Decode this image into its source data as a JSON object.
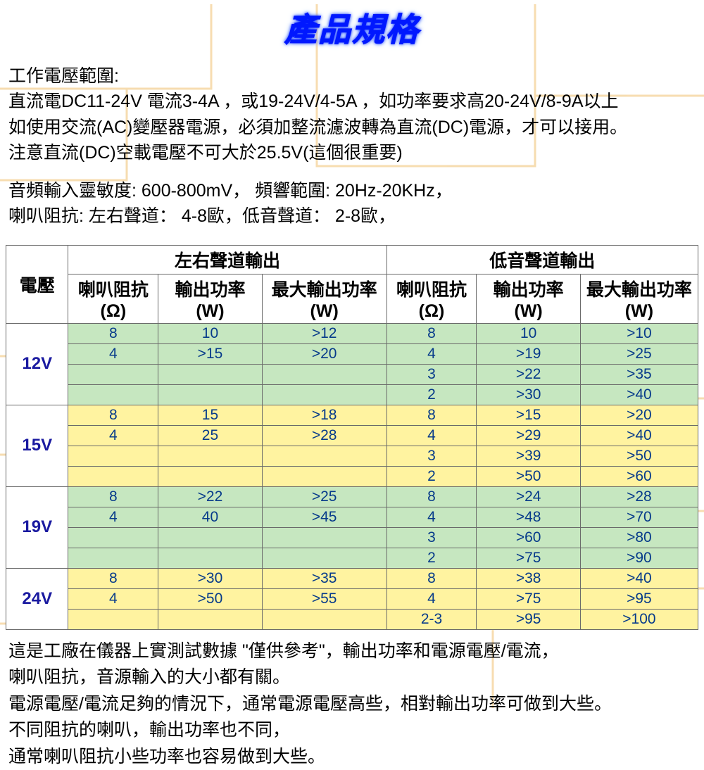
{
  "title": "產品規格",
  "colors": {
    "title_text": "#0018ff",
    "title_glow": "#6aa0ff",
    "body_text": "#000000",
    "cell_text": "#063a8a",
    "voltage_text": "#1a1aa0",
    "subhead_text": "#1a3a8a",
    "border": "#6a6a6a",
    "row_green": "#c6e7c0",
    "row_yellow": "#fff3a0",
    "watermark": "#f6d9a8"
  },
  "spec_lines": {
    "l1": "工作電壓範圍:",
    "l2": "直流電DC11-24V 電流3-4A ，或19-24V/4-5A ，如功率要求高20-24V/8-9A以上",
    "l3": "如使用交流(AC)變壓器電源，必須加整流濾波轉為直流(DC)電源，才可以接用。",
    "l4": "注意直流(DC)空載電壓不可大於25.5V(這個很重要)",
    "l5": "音頻輸入靈敏度: 600-800mV， 頻響範圍: 20Hz-20KHz，",
    "l6": "喇叭阻抗: 左右聲道：  4-8歐，低音聲道：  2-8歐，"
  },
  "table": {
    "h_voltage": "電壓",
    "h_lr": "左右聲道輸出",
    "h_bass": "低音聲道輸出",
    "sub_imp": "喇叭阻抗(Ω)",
    "sub_pow": "輸出功率(W)",
    "sub_max": "最大輸出功率(W)",
    "column_widths_pct": [
      9,
      13,
      15,
      18,
      13,
      15,
      17
    ],
    "groups": [
      {
        "voltage": "12V",
        "row_color": "green",
        "rows": [
          {
            "lr_imp": "8",
            "lr_pow": "10",
            "lr_max": ">12",
            "b_imp": "8",
            "b_pow": "10",
            "b_max": ">10"
          },
          {
            "lr_imp": "4",
            "lr_pow": ">15",
            "lr_max": ">20",
            "b_imp": "4",
            "b_pow": ">19",
            "b_max": ">25"
          },
          {
            "lr_imp": "",
            "lr_pow": "",
            "lr_max": "",
            "b_imp": "3",
            "b_pow": ">22",
            "b_max": ">35"
          },
          {
            "lr_imp": "",
            "lr_pow": "",
            "lr_max": "",
            "b_imp": "2",
            "b_pow": ">30",
            "b_max": ">40"
          }
        ]
      },
      {
        "voltage": "15V",
        "row_color": "yellow",
        "rows": [
          {
            "lr_imp": "8",
            "lr_pow": "15",
            "lr_max": ">18",
            "b_imp": "8",
            "b_pow": ">15",
            "b_max": ">20"
          },
          {
            "lr_imp": "4",
            "lr_pow": "25",
            "lr_max": ">28",
            "b_imp": "4",
            "b_pow": ">29",
            "b_max": ">40"
          },
          {
            "lr_imp": "",
            "lr_pow": "",
            "lr_max": "",
            "b_imp": "3",
            "b_pow": ">39",
            "b_max": ">50"
          },
          {
            "lr_imp": "",
            "lr_pow": "",
            "lr_max": "",
            "b_imp": "2",
            "b_pow": ">50",
            "b_max": ">60"
          }
        ]
      },
      {
        "voltage": "19V",
        "row_color": "green",
        "rows": [
          {
            "lr_imp": "8",
            "lr_pow": ">22",
            "lr_max": ">25",
            "b_imp": "8",
            "b_pow": ">24",
            "b_max": ">28"
          },
          {
            "lr_imp": "4",
            "lr_pow": "40",
            "lr_max": ">45",
            "b_imp": "4",
            "b_pow": ">48",
            "b_max": ">70"
          },
          {
            "lr_imp": "",
            "lr_pow": "",
            "lr_max": "",
            "b_imp": "3",
            "b_pow": ">60",
            "b_max": ">80"
          },
          {
            "lr_imp": "",
            "lr_pow": "",
            "lr_max": "",
            "b_imp": "2",
            "b_pow": ">75",
            "b_max": ">90"
          }
        ]
      },
      {
        "voltage": "24V",
        "row_color": "yellow",
        "rows": [
          {
            "lr_imp": "8",
            "lr_pow": ">30",
            "lr_max": ">35",
            "b_imp": "8",
            "b_pow": ">38",
            "b_max": ">40"
          },
          {
            "lr_imp": "4",
            "lr_pow": ">50",
            "lr_max": ">55",
            "b_imp": "4",
            "b_pow": ">75",
            "b_max": ">95"
          },
          {
            "lr_imp": "",
            "lr_pow": "",
            "lr_max": "",
            "b_imp": "2-3",
            "b_pow": ">95",
            "b_max": ">100"
          }
        ]
      }
    ]
  },
  "notes": {
    "n1": "這是工廠在儀器上實測試數據 \"僅供參考\"，輸出功率和電源電壓/電流，",
    "n2": "喇叭阻抗，音源輸入的大小都有關。",
    "n3": "電源電壓/電流足夠的情況下，通常電源電壓高些，相對輸出功率可做到大些。",
    "n4": "不同阻抗的喇叭，輸出功率也不同，",
    "n5": "通常喇叭阻抗小些功率也容易做到大些。"
  }
}
